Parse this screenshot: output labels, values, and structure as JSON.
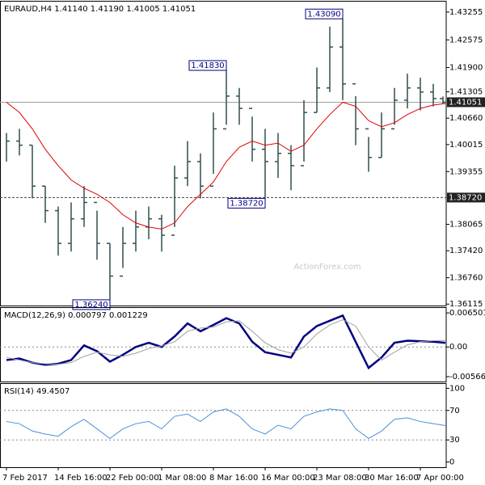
{
  "chart_data": [
    {
      "type": "ohlc",
      "title": "EURAUD,H4 1.41140 1.41190 1.41005 1.41051",
      "categories": [
        "7 Feb 2017",
        null,
        null,
        null,
        "14 Feb 16:00",
        null,
        null,
        null,
        "22 Feb 00:00",
        null,
        null,
        null,
        "1 Mar 08:00",
        null,
        null,
        null,
        "8 Mar 16:00",
        null,
        null,
        null,
        "16 Mar 00:00",
        null,
        null,
        null,
        "23 Mar 08:00",
        null,
        null,
        null,
        "30 Mar 16:00",
        null,
        null,
        null,
        "7 Apr 00:00",
        null,
        null
      ],
      "high": [
        1.403,
        1.404,
        1.4,
        1.39,
        1.385,
        1.386,
        1.39,
        1.384,
        1.376,
        1.38,
        1.384,
        1.385,
        1.383,
        1.395,
        1.401,
        1.398,
        1.408,
        1.4183,
        1.414,
        1.407,
        1.404,
        1.403,
        1.4,
        1.411,
        1.419,
        1.429,
        1.4309,
        1.412,
        1.402,
        1.408,
        1.414,
        1.4175,
        1.4165,
        1.415,
        1.4119
      ],
      "low": [
        1.396,
        1.3975,
        1.387,
        1.381,
        1.373,
        1.374,
        1.38,
        1.372,
        1.3624,
        1.37,
        1.374,
        1.377,
        1.374,
        1.38,
        1.39,
        1.387,
        1.393,
        1.405,
        1.405,
        1.396,
        1.3872,
        1.392,
        1.389,
        1.396,
        1.408,
        1.413,
        1.411,
        1.4,
        1.3935,
        1.397,
        1.405,
        1.409,
        1.4085,
        1.4095,
        1.41005
      ],
      "close": [
        1.401,
        1.4,
        1.39,
        1.384,
        1.376,
        1.382,
        1.386,
        1.376,
        1.368,
        1.376,
        1.38,
        1.382,
        1.378,
        1.392,
        1.396,
        1.39,
        1.404,
        1.412,
        1.409,
        1.399,
        1.396,
        1.398,
        1.395,
        1.408,
        1.414,
        1.424,
        1.415,
        1.404,
        1.397,
        1.404,
        1.411,
        1.414,
        1.413,
        1.4114,
        1.41051
      ],
      "color": "#2f4f4f",
      "ma": {
        "color": "#e00000",
        "values": [
          1.4105,
          1.408,
          1.404,
          1.399,
          1.395,
          1.3915,
          1.3895,
          1.388,
          1.386,
          1.383,
          1.381,
          1.38,
          1.3795,
          1.381,
          1.385,
          1.388,
          1.391,
          1.396,
          1.3995,
          1.401,
          1.4,
          1.4005,
          1.3985,
          1.4,
          1.404,
          1.4075,
          1.4105,
          1.4095,
          1.406,
          1.4045,
          1.4055,
          1.4075,
          1.409,
          1.4098,
          1.4102
        ]
      },
      "ylim": [
        1.3608,
        1.4353
      ],
      "yticks": [
        1.43255,
        1.42575,
        {
          "value": 1.419,
          "label": "1.41900"
        },
        1.41305,
        {
          "value": 1.4066,
          "label": "1.40660"
        },
        1.40015,
        1.39355,
        1.38065,
        {
          "value": 1.3742,
          "label": "1.37420"
        },
        {
          "value": 1.3676,
          "label": "1.36760"
        },
        1.36115
      ],
      "hlines": [
        {
          "value": 1.41051,
          "label": "1.41051",
          "color": "#a0a0a0"
        },
        {
          "value": 1.3872,
          "label": "1.38720",
          "color": "#404040"
        }
      ],
      "annotations": [
        {
          "index": 17,
          "value": 1.4183,
          "label": "1.41830"
        },
        {
          "index": 26,
          "value": 1.4309,
          "label": "1.43090"
        },
        {
          "index": 20,
          "value": 1.3872,
          "label": "1.38720"
        },
        {
          "index": 8,
          "value": 1.3624,
          "label": "1.36240"
        }
      ],
      "watermark": "ActionForex.com"
    },
    {
      "type": "line",
      "title": "MACD(12,26,9) 0.000797 0.001229",
      "series": [
        {
          "color": "#000080",
          "width": 2.5,
          "values": [
            -0.0025,
            -0.0022,
            -0.003,
            -0.0034,
            -0.0032,
            -0.0025,
            0.0003,
            -0.0008,
            -0.0028,
            -0.0015,
            0.0,
            0.0008,
            0.0,
            0.002,
            0.0045,
            0.003,
            0.0042,
            0.0055,
            0.0045,
            0.001,
            -0.001,
            -0.0015,
            -0.002,
            0.002,
            0.004,
            0.005,
            0.006,
            0.001,
            -0.004,
            -0.002,
            0.0008,
            0.0012,
            0.0011,
            0.001,
            0.000797
          ]
        },
        {
          "color": "#a0a0a0",
          "width": 1,
          "values": [
            -0.002,
            -0.0025,
            -0.003,
            -0.0032,
            -0.0033,
            -0.003,
            -0.0018,
            -0.001,
            -0.0015,
            -0.0018,
            -0.0012,
            -0.0003,
            0.0002,
            0.001,
            0.003,
            0.0036,
            0.0038,
            0.0048,
            0.005,
            0.003,
            0.0008,
            -0.0005,
            -0.0012,
            0.0,
            0.0025,
            0.0042,
            0.0052,
            0.004,
            0.0,
            -0.0025,
            -0.001,
            0.0004,
            0.001,
            0.0012,
            0.001229
          ]
        }
      ],
      "ylim": [
        -0.0066,
        0.0076
      ],
      "yticks": [
        0.006501,
        {
          "value": 0,
          "label": "0.00"
        },
        -0.005666
      ]
    },
    {
      "type": "line",
      "title": "RSI(14) 49.4507",
      "series": [
        {
          "color": "#4a90d9",
          "width": 1,
          "values": [
            55,
            52,
            42,
            38,
            35,
            48,
            58,
            45,
            32,
            45,
            52,
            55,
            45,
            62,
            65,
            55,
            68,
            72,
            62,
            45,
            38,
            50,
            45,
            62,
            68,
            72,
            70,
            45,
            32,
            42,
            58,
            60,
            55,
            52,
            49.4507
          ]
        }
      ],
      "ylim": [
        -7,
        107
      ],
      "yticks": [
        100,
        70,
        30,
        0
      ],
      "dashed": [
        70,
        30
      ]
    }
  ]
}
